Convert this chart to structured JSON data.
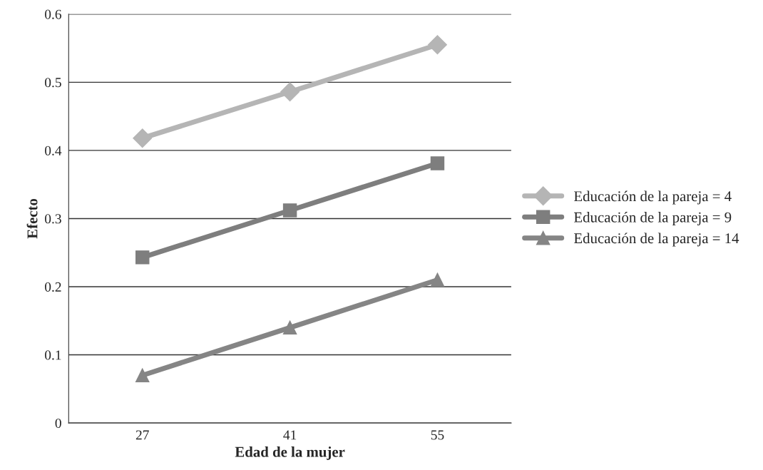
{
  "chart_data": {
    "type": "line",
    "xlabel": "Edad de la mujer",
    "ylabel": "Efecto",
    "categories": [
      "27",
      "41",
      "55"
    ],
    "series": [
      {
        "name": "Educación de la pareja = 4",
        "color": "#b5b5b5",
        "marker": "diamond",
        "values": [
          0.418,
          0.486,
          0.555
        ]
      },
      {
        "name": "Educación de la pareja = 9",
        "color": "#7e7e7e",
        "marker": "square",
        "values": [
          0.243,
          0.312,
          0.381
        ]
      },
      {
        "name": "Educación de la pareja = 14",
        "color": "#858585",
        "marker": "triangle",
        "values": [
          0.07,
          0.14,
          0.21
        ]
      }
    ],
    "ylim": [
      0,
      0.6
    ],
    "yticks": [
      0,
      0.1,
      0.2,
      0.3,
      0.4,
      0.5,
      0.6
    ],
    "grid": "y",
    "legend": "right",
    "line_style": "solid"
  }
}
